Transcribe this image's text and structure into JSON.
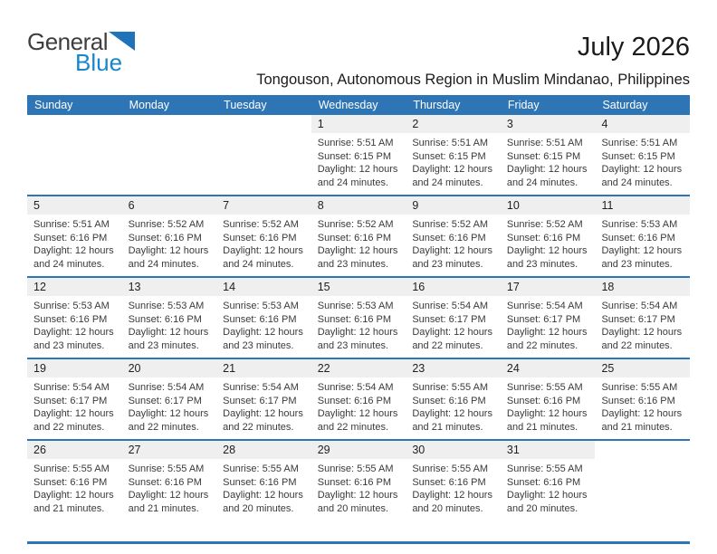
{
  "header": {
    "title": "July 2026",
    "location": "Tongouson, Autonomous Region in Muslim Mindanao, Philippines"
  },
  "logo": {
    "word1": "General",
    "word2": "Blue",
    "flag_icon": "flag-triangle-icon"
  },
  "colors": {
    "header_bar": "#2e75b6",
    "row_border": "#2e75b6",
    "day_number_band": "#efefef",
    "logo_flag": "#2173b9",
    "logo_blue_text": "#1787c9"
  },
  "calendar": {
    "weekday_headers": [
      "Sunday",
      "Monday",
      "Tuesday",
      "Wednesday",
      "Thursday",
      "Friday",
      "Saturday"
    ],
    "labels": {
      "sunrise": "Sunrise:",
      "sunset": "Sunset:",
      "daylight": "Daylight:"
    },
    "weeks": [
      [
        null,
        null,
        null,
        {
          "day": 1,
          "sunrise": "5:51 AM",
          "sunset": "6:15 PM",
          "daylight": "12 hours and 24 minutes."
        },
        {
          "day": 2,
          "sunrise": "5:51 AM",
          "sunset": "6:15 PM",
          "daylight": "12 hours and 24 minutes."
        },
        {
          "day": 3,
          "sunrise": "5:51 AM",
          "sunset": "6:15 PM",
          "daylight": "12 hours and 24 minutes."
        },
        {
          "day": 4,
          "sunrise": "5:51 AM",
          "sunset": "6:15 PM",
          "daylight": "12 hours and 24 minutes."
        }
      ],
      [
        {
          "day": 5,
          "sunrise": "5:51 AM",
          "sunset": "6:16 PM",
          "daylight": "12 hours and 24 minutes."
        },
        {
          "day": 6,
          "sunrise": "5:52 AM",
          "sunset": "6:16 PM",
          "daylight": "12 hours and 24 minutes."
        },
        {
          "day": 7,
          "sunrise": "5:52 AM",
          "sunset": "6:16 PM",
          "daylight": "12 hours and 24 minutes."
        },
        {
          "day": 8,
          "sunrise": "5:52 AM",
          "sunset": "6:16 PM",
          "daylight": "12 hours and 23 minutes."
        },
        {
          "day": 9,
          "sunrise": "5:52 AM",
          "sunset": "6:16 PM",
          "daylight": "12 hours and 23 minutes."
        },
        {
          "day": 10,
          "sunrise": "5:52 AM",
          "sunset": "6:16 PM",
          "daylight": "12 hours and 23 minutes."
        },
        {
          "day": 11,
          "sunrise": "5:53 AM",
          "sunset": "6:16 PM",
          "daylight": "12 hours and 23 minutes."
        }
      ],
      [
        {
          "day": 12,
          "sunrise": "5:53 AM",
          "sunset": "6:16 PM",
          "daylight": "12 hours and 23 minutes."
        },
        {
          "day": 13,
          "sunrise": "5:53 AM",
          "sunset": "6:16 PM",
          "daylight": "12 hours and 23 minutes."
        },
        {
          "day": 14,
          "sunrise": "5:53 AM",
          "sunset": "6:16 PM",
          "daylight": "12 hours and 23 minutes."
        },
        {
          "day": 15,
          "sunrise": "5:53 AM",
          "sunset": "6:16 PM",
          "daylight": "12 hours and 23 minutes."
        },
        {
          "day": 16,
          "sunrise": "5:54 AM",
          "sunset": "6:17 PM",
          "daylight": "12 hours and 22 minutes."
        },
        {
          "day": 17,
          "sunrise": "5:54 AM",
          "sunset": "6:17 PM",
          "daylight": "12 hours and 22 minutes."
        },
        {
          "day": 18,
          "sunrise": "5:54 AM",
          "sunset": "6:17 PM",
          "daylight": "12 hours and 22 minutes."
        }
      ],
      [
        {
          "day": 19,
          "sunrise": "5:54 AM",
          "sunset": "6:17 PM",
          "daylight": "12 hours and 22 minutes."
        },
        {
          "day": 20,
          "sunrise": "5:54 AM",
          "sunset": "6:17 PM",
          "daylight": "12 hours and 22 minutes."
        },
        {
          "day": 21,
          "sunrise": "5:54 AM",
          "sunset": "6:17 PM",
          "daylight": "12 hours and 22 minutes."
        },
        {
          "day": 22,
          "sunrise": "5:54 AM",
          "sunset": "6:16 PM",
          "daylight": "12 hours and 22 minutes."
        },
        {
          "day": 23,
          "sunrise": "5:55 AM",
          "sunset": "6:16 PM",
          "daylight": "12 hours and 21 minutes."
        },
        {
          "day": 24,
          "sunrise": "5:55 AM",
          "sunset": "6:16 PM",
          "daylight": "12 hours and 21 minutes."
        },
        {
          "day": 25,
          "sunrise": "5:55 AM",
          "sunset": "6:16 PM",
          "daylight": "12 hours and 21 minutes."
        }
      ],
      [
        {
          "day": 26,
          "sunrise": "5:55 AM",
          "sunset": "6:16 PM",
          "daylight": "12 hours and 21 minutes."
        },
        {
          "day": 27,
          "sunrise": "5:55 AM",
          "sunset": "6:16 PM",
          "daylight": "12 hours and 21 minutes."
        },
        {
          "day": 28,
          "sunrise": "5:55 AM",
          "sunset": "6:16 PM",
          "daylight": "12 hours and 20 minutes."
        },
        {
          "day": 29,
          "sunrise": "5:55 AM",
          "sunset": "6:16 PM",
          "daylight": "12 hours and 20 minutes."
        },
        {
          "day": 30,
          "sunrise": "5:55 AM",
          "sunset": "6:16 PM",
          "daylight": "12 hours and 20 minutes."
        },
        {
          "day": 31,
          "sunrise": "5:55 AM",
          "sunset": "6:16 PM",
          "daylight": "12 hours and 20 minutes."
        },
        null
      ]
    ]
  }
}
